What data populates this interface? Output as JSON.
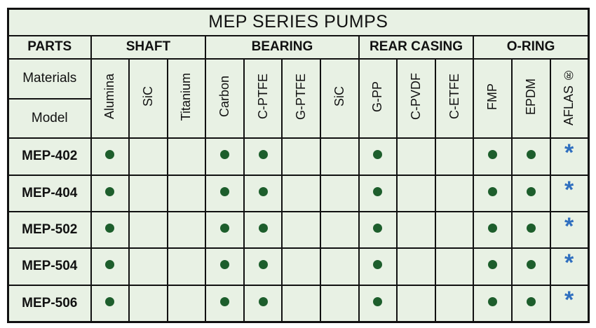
{
  "title": "MEP SERIES PUMPS",
  "parts_label": "PARTS",
  "materials_label": "Materials",
  "model_label": "Model",
  "groups": [
    {
      "name": "SHAFT",
      "span": 3
    },
    {
      "name": "BEARING",
      "span": 4
    },
    {
      "name": "REAR CASING",
      "span": 3
    },
    {
      "name": "O-RING",
      "span": 3
    }
  ],
  "materials": [
    "Alumina",
    "SiC",
    "Titanium",
    "Carbon",
    "C-PTFE",
    "G-PTFE",
    "SiC",
    "G-PP",
    "C-PVDF",
    "C-ETFE",
    "FMP",
    "EPDM",
    "AFLAS ®"
  ],
  "colors": {
    "dot": "#1d5e2c",
    "asterisk": "#2f6fbf",
    "background": "#e8f1e4"
  },
  "rows": [
    {
      "model": "MEP-402",
      "cells": [
        "dot",
        "",
        "",
        "dot",
        "dot",
        "",
        "",
        "dot",
        "",
        "",
        "dot",
        "dot",
        "*"
      ]
    },
    {
      "model": "MEP-404",
      "cells": [
        "dot",
        "",
        "",
        "dot",
        "dot",
        "",
        "",
        "dot",
        "",
        "",
        "dot",
        "dot",
        "*"
      ]
    },
    {
      "model": "MEP-502",
      "cells": [
        "dot",
        "",
        "",
        "dot",
        "dot",
        "",
        "",
        "dot",
        "",
        "",
        "dot",
        "dot",
        "*"
      ]
    },
    {
      "model": "MEP-504",
      "cells": [
        "dot",
        "",
        "",
        "dot",
        "dot",
        "",
        "",
        "dot",
        "",
        "",
        "dot",
        "dot",
        "*"
      ]
    },
    {
      "model": "MEP-506",
      "cells": [
        "dot",
        "",
        "",
        "dot",
        "dot",
        "",
        "",
        "dot",
        "",
        "",
        "dot",
        "dot",
        "*"
      ]
    }
  ]
}
